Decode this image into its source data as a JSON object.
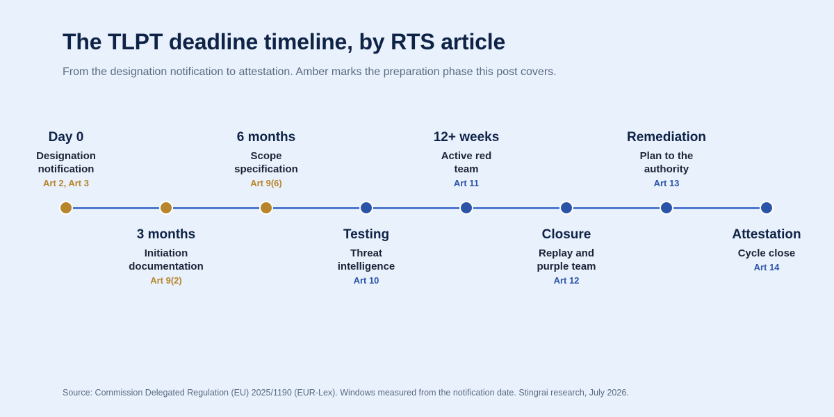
{
  "title": "The TLPT deadline timeline, by RTS article",
  "subtitle": "From the designation notification to attestation. Amber marks the preparation phase this post covers.",
  "source": "Source: Commission Delegated Regulation (EU) 2025/1190 (EUR-Lex). Windows measured from the notification date. Stingrai research, July 2026.",
  "colors": {
    "preparation_phase": "#b7852b",
    "later_phase": "#2b54a8",
    "track": "#4f78cf",
    "background": "#e9f1fd"
  },
  "milestones": [
    {
      "label": "Day 0",
      "desc_line1": "Designation",
      "desc_line2": "notification",
      "article": "Art 2, Art 3",
      "phase": "preparation"
    },
    {
      "label": "3 months",
      "desc_line1": "Initiation",
      "desc_line2": "documentation",
      "article": "Art 9(2)",
      "phase": "preparation"
    },
    {
      "label": "6 months",
      "desc_line1": "Scope",
      "desc_line2": "specification",
      "article": "Art 9(6)",
      "phase": "preparation"
    },
    {
      "label": "Testing",
      "desc_line1": "Threat",
      "desc_line2": "intelligence",
      "article": "Art 10",
      "phase": "later"
    },
    {
      "label": "12+ weeks",
      "desc_line1": "Active red",
      "desc_line2": "team",
      "article": "Art 11",
      "phase": "later"
    },
    {
      "label": "Closure",
      "desc_line1": "Replay and",
      "desc_line2": "purple team",
      "article": "Art 12",
      "phase": "later"
    },
    {
      "label": "Remediation",
      "desc_line1": "Plan to the",
      "desc_line2": "authority",
      "article": "Art 13",
      "phase": "later"
    },
    {
      "label": "Attestation",
      "desc_line1": "Cycle close",
      "desc_line2": "",
      "article": "Art 14",
      "phase": "later"
    }
  ]
}
